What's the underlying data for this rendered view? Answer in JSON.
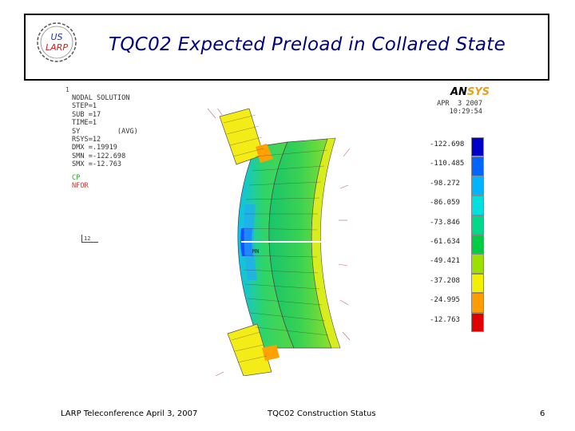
{
  "slide": {
    "title": "TQC02 Expected Preload in Collared State",
    "logo_text": {
      "top": "US",
      "bottom": "LARP"
    }
  },
  "ansys": {
    "info_lines": [
      "NODAL SOLUTION",
      "STEP=1",
      "SUB =17",
      "TIME=1",
      "SY         (AVG)",
      "RSYS=12",
      "DMX =.19919",
      "SMN =-122.698",
      "SMX =-12.763"
    ],
    "legend_cp": "CP",
    "legend_nfor": "NFOR",
    "logo_main": "AN",
    "logo_accent": "SYS",
    "date": "APR  3 2007",
    "time": "10:29:54",
    "axis_label": "12",
    "mn_label": "MN",
    "scale_values": [
      "-122.698",
      "-110.485",
      "-98.272",
      "-86.059",
      "-73.846",
      "-61.634",
      "-49.421",
      "-37.208",
      "-24.995",
      "-12.763"
    ],
    "scale_colors": [
      "#0000c8",
      "#0066ff",
      "#00b4ff",
      "#00e0e0",
      "#00d88a",
      "#00cc44",
      "#9ce000",
      "#f0f000",
      "#ff9c00",
      "#e00000"
    ]
  },
  "footer": {
    "left": "LARP Teleconference April 3, 2007",
    "center": "TQC02 Construction Status",
    "page": "6"
  }
}
